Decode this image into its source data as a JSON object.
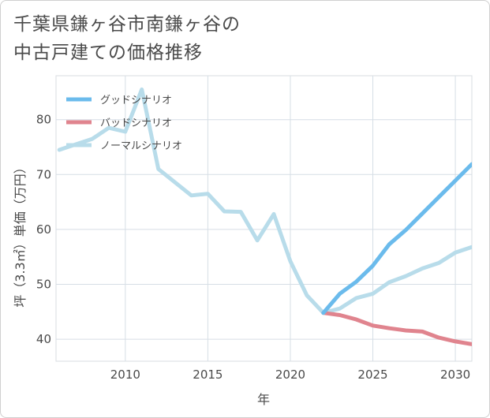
{
  "title_lines": [
    "千葉県鎌ヶ谷市南鎌ヶ谷の",
    "中古戸建ての価格推移"
  ],
  "chart_data": {
    "type": "line",
    "title": "千葉県鎌ヶ谷市南鎌ヶ谷の中古戸建ての価格推移",
    "xlabel": "年",
    "ylabel": "坪（3.3㎡）単価（万円）",
    "xlim": [
      2005.8,
      2031
    ],
    "ylim": [
      36,
      88
    ],
    "xticks": [
      2010,
      2015,
      2020,
      2025,
      2030
    ],
    "yticks": [
      40,
      50,
      60,
      70,
      80
    ],
    "grid": true,
    "legend_position": "top-left",
    "series": [
      {
        "name": "グッドシナリオ",
        "color": "#6bbbec",
        "x": [
          2022,
          2023,
          2024,
          2025,
          2026,
          2027,
          2028,
          2029,
          2030,
          2031
        ],
        "y": [
          44.8,
          48.3,
          50.5,
          53.4,
          57.3,
          59.9,
          62.9,
          65.9,
          68.9,
          71.9
        ]
      },
      {
        "name": "バッドシナリオ",
        "color": "#e0848e",
        "x": [
          2022,
          2023,
          2024,
          2025,
          2026,
          2027,
          2028,
          2029,
          2030,
          2031
        ],
        "y": [
          44.8,
          44.4,
          43.6,
          42.5,
          42.0,
          41.6,
          41.4,
          40.3,
          39.6,
          39.1
        ]
      },
      {
        "name": "ノーマルシナリオ",
        "color": "#b8dcea",
        "x": [
          2006,
          2007,
          2008,
          2009,
          2010,
          2011,
          2012,
          2013,
          2014,
          2015,
          2016,
          2017,
          2018,
          2019,
          2020,
          2021,
          2022,
          2023,
          2024,
          2025,
          2026,
          2027,
          2028,
          2029,
          2030,
          2031
        ],
        "y": [
          74.5,
          75.5,
          76.5,
          78.5,
          77.8,
          85.5,
          71.0,
          68.6,
          66.2,
          66.5,
          63.3,
          63.2,
          58.0,
          62.8,
          54.2,
          48.0,
          44.8,
          45.6,
          47.5,
          48.3,
          50.4,
          51.5,
          52.9,
          53.9,
          55.8,
          56.8
        ]
      }
    ]
  }
}
